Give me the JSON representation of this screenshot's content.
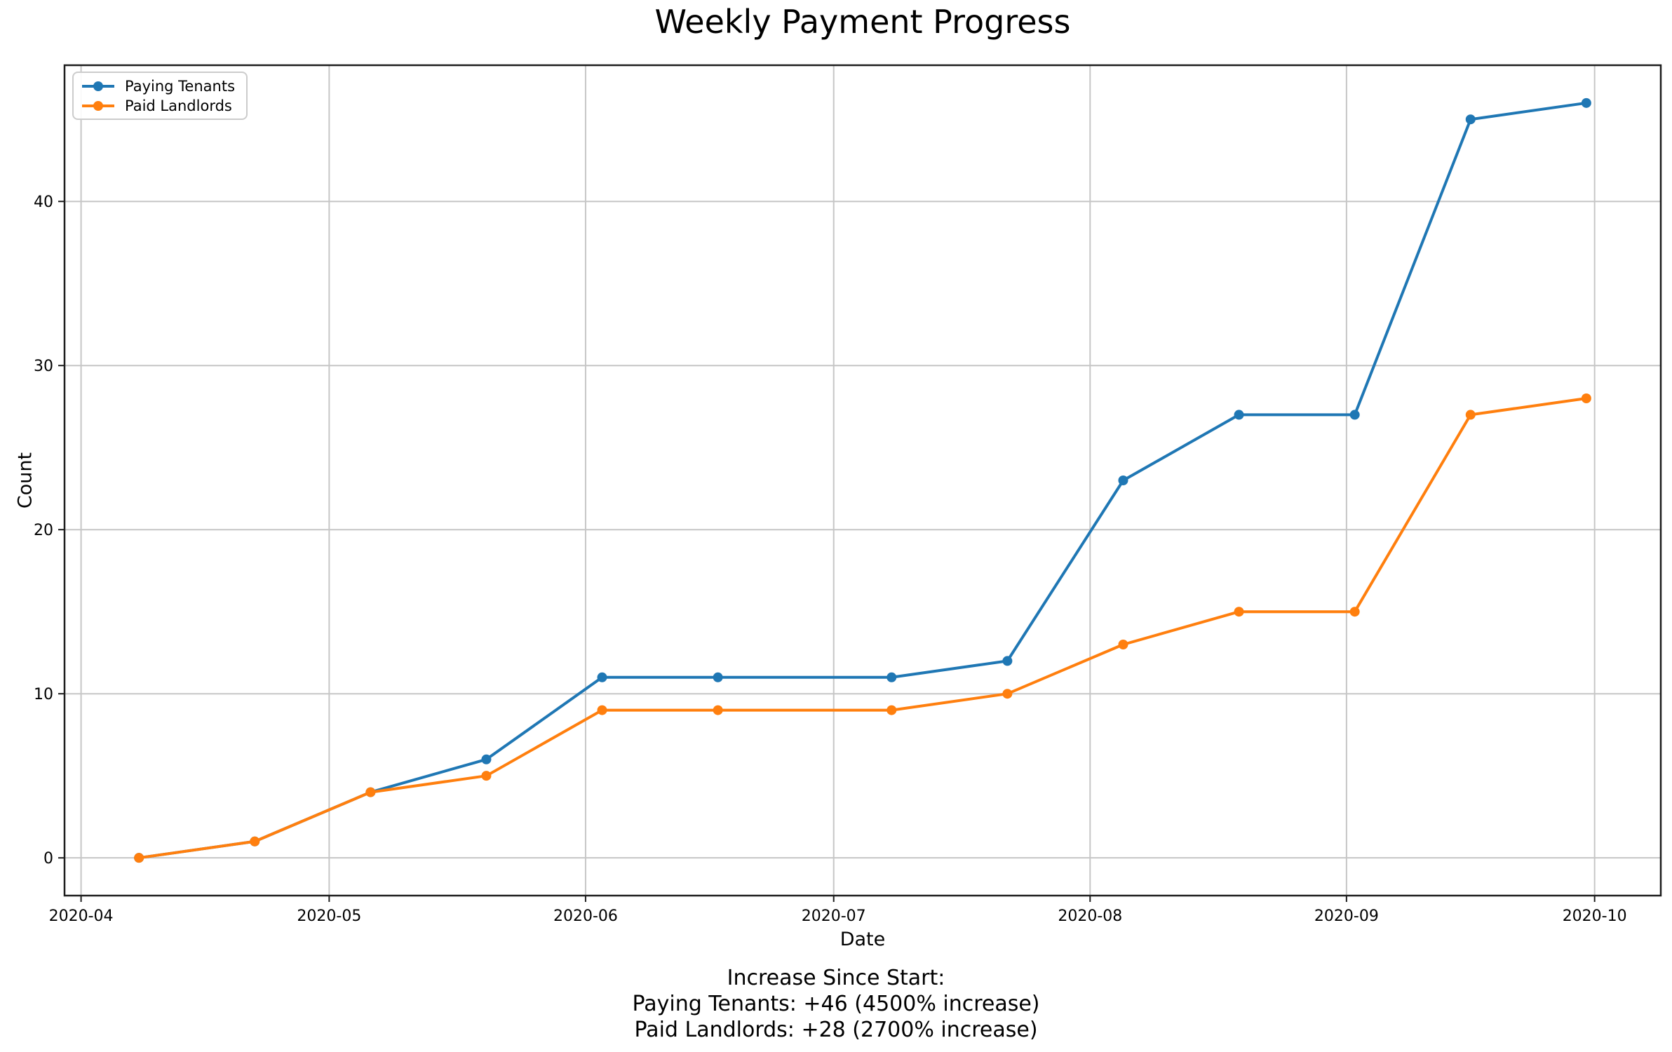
{
  "title": "Weekly Payment Progress",
  "axes": {
    "xlabel": "Date",
    "ylabel": "Count"
  },
  "legend": {
    "position": "upper left",
    "items": [
      {
        "label": "Paying Tenants",
        "color": "#1f77b4"
      },
      {
        "label": "Paid Landlords",
        "color": "#ff7f0e"
      }
    ]
  },
  "footer": {
    "line1": "Increase Since Start:",
    "line2": "Paying Tenants: +46 (4500% increase)",
    "line3": "Paid Landlords: +28 (2700% increase)"
  },
  "colors": {
    "blue_series": "#1f77b4",
    "orange_series": "#ff7f0e",
    "grid": "#c6c6c6",
    "spine": "#1d1d1d",
    "background": "#ffffff",
    "text": "#000000"
  },
  "chart_data": {
    "type": "line",
    "title": "Weekly Payment Progress",
    "xlabel": "Date",
    "ylabel": "Count",
    "grid": true,
    "legend_position": "upper left",
    "marker": "o",
    "x": [
      "2020-04-08",
      "2020-04-22",
      "2020-05-06",
      "2020-05-20",
      "2020-06-03",
      "2020-06-17",
      "2020-07-08",
      "2020-07-22",
      "2020-08-05",
      "2020-08-19",
      "2020-09-02",
      "2020-09-16",
      "2020-09-30"
    ],
    "series": [
      {
        "name": "Paying Tenants",
        "color": "#1f77b4",
        "values": [
          0,
          1,
          4,
          6,
          11,
          11,
          11,
          12,
          23,
          27,
          27,
          45,
          46
        ]
      },
      {
        "name": "Paid Landlords",
        "color": "#ff7f0e",
        "values": [
          0,
          1,
          4,
          5,
          9,
          9,
          9,
          10,
          13,
          15,
          15,
          27,
          28
        ]
      }
    ],
    "x_ticks": [
      {
        "value": "2020-04-01",
        "label": "2020-04"
      },
      {
        "value": "2020-05-01",
        "label": "2020-05"
      },
      {
        "value": "2020-06-01",
        "label": "2020-06"
      },
      {
        "value": "2020-07-01",
        "label": "2020-07"
      },
      {
        "value": "2020-08-01",
        "label": "2020-08"
      },
      {
        "value": "2020-09-01",
        "label": "2020-09"
      },
      {
        "value": "2020-10-01",
        "label": "2020-10"
      }
    ],
    "y_ticks": [
      0,
      10,
      20,
      30,
      40
    ],
    "xlim": [
      "2020-03-30",
      "2020-10-09"
    ],
    "ylim": [
      -2.3,
      48.3
    ],
    "annotations": [
      "Increase Since Start:",
      "Paying Tenants: +46 (4500% increase)",
      "Paid Landlords: +28 (2700% increase)"
    ]
  }
}
